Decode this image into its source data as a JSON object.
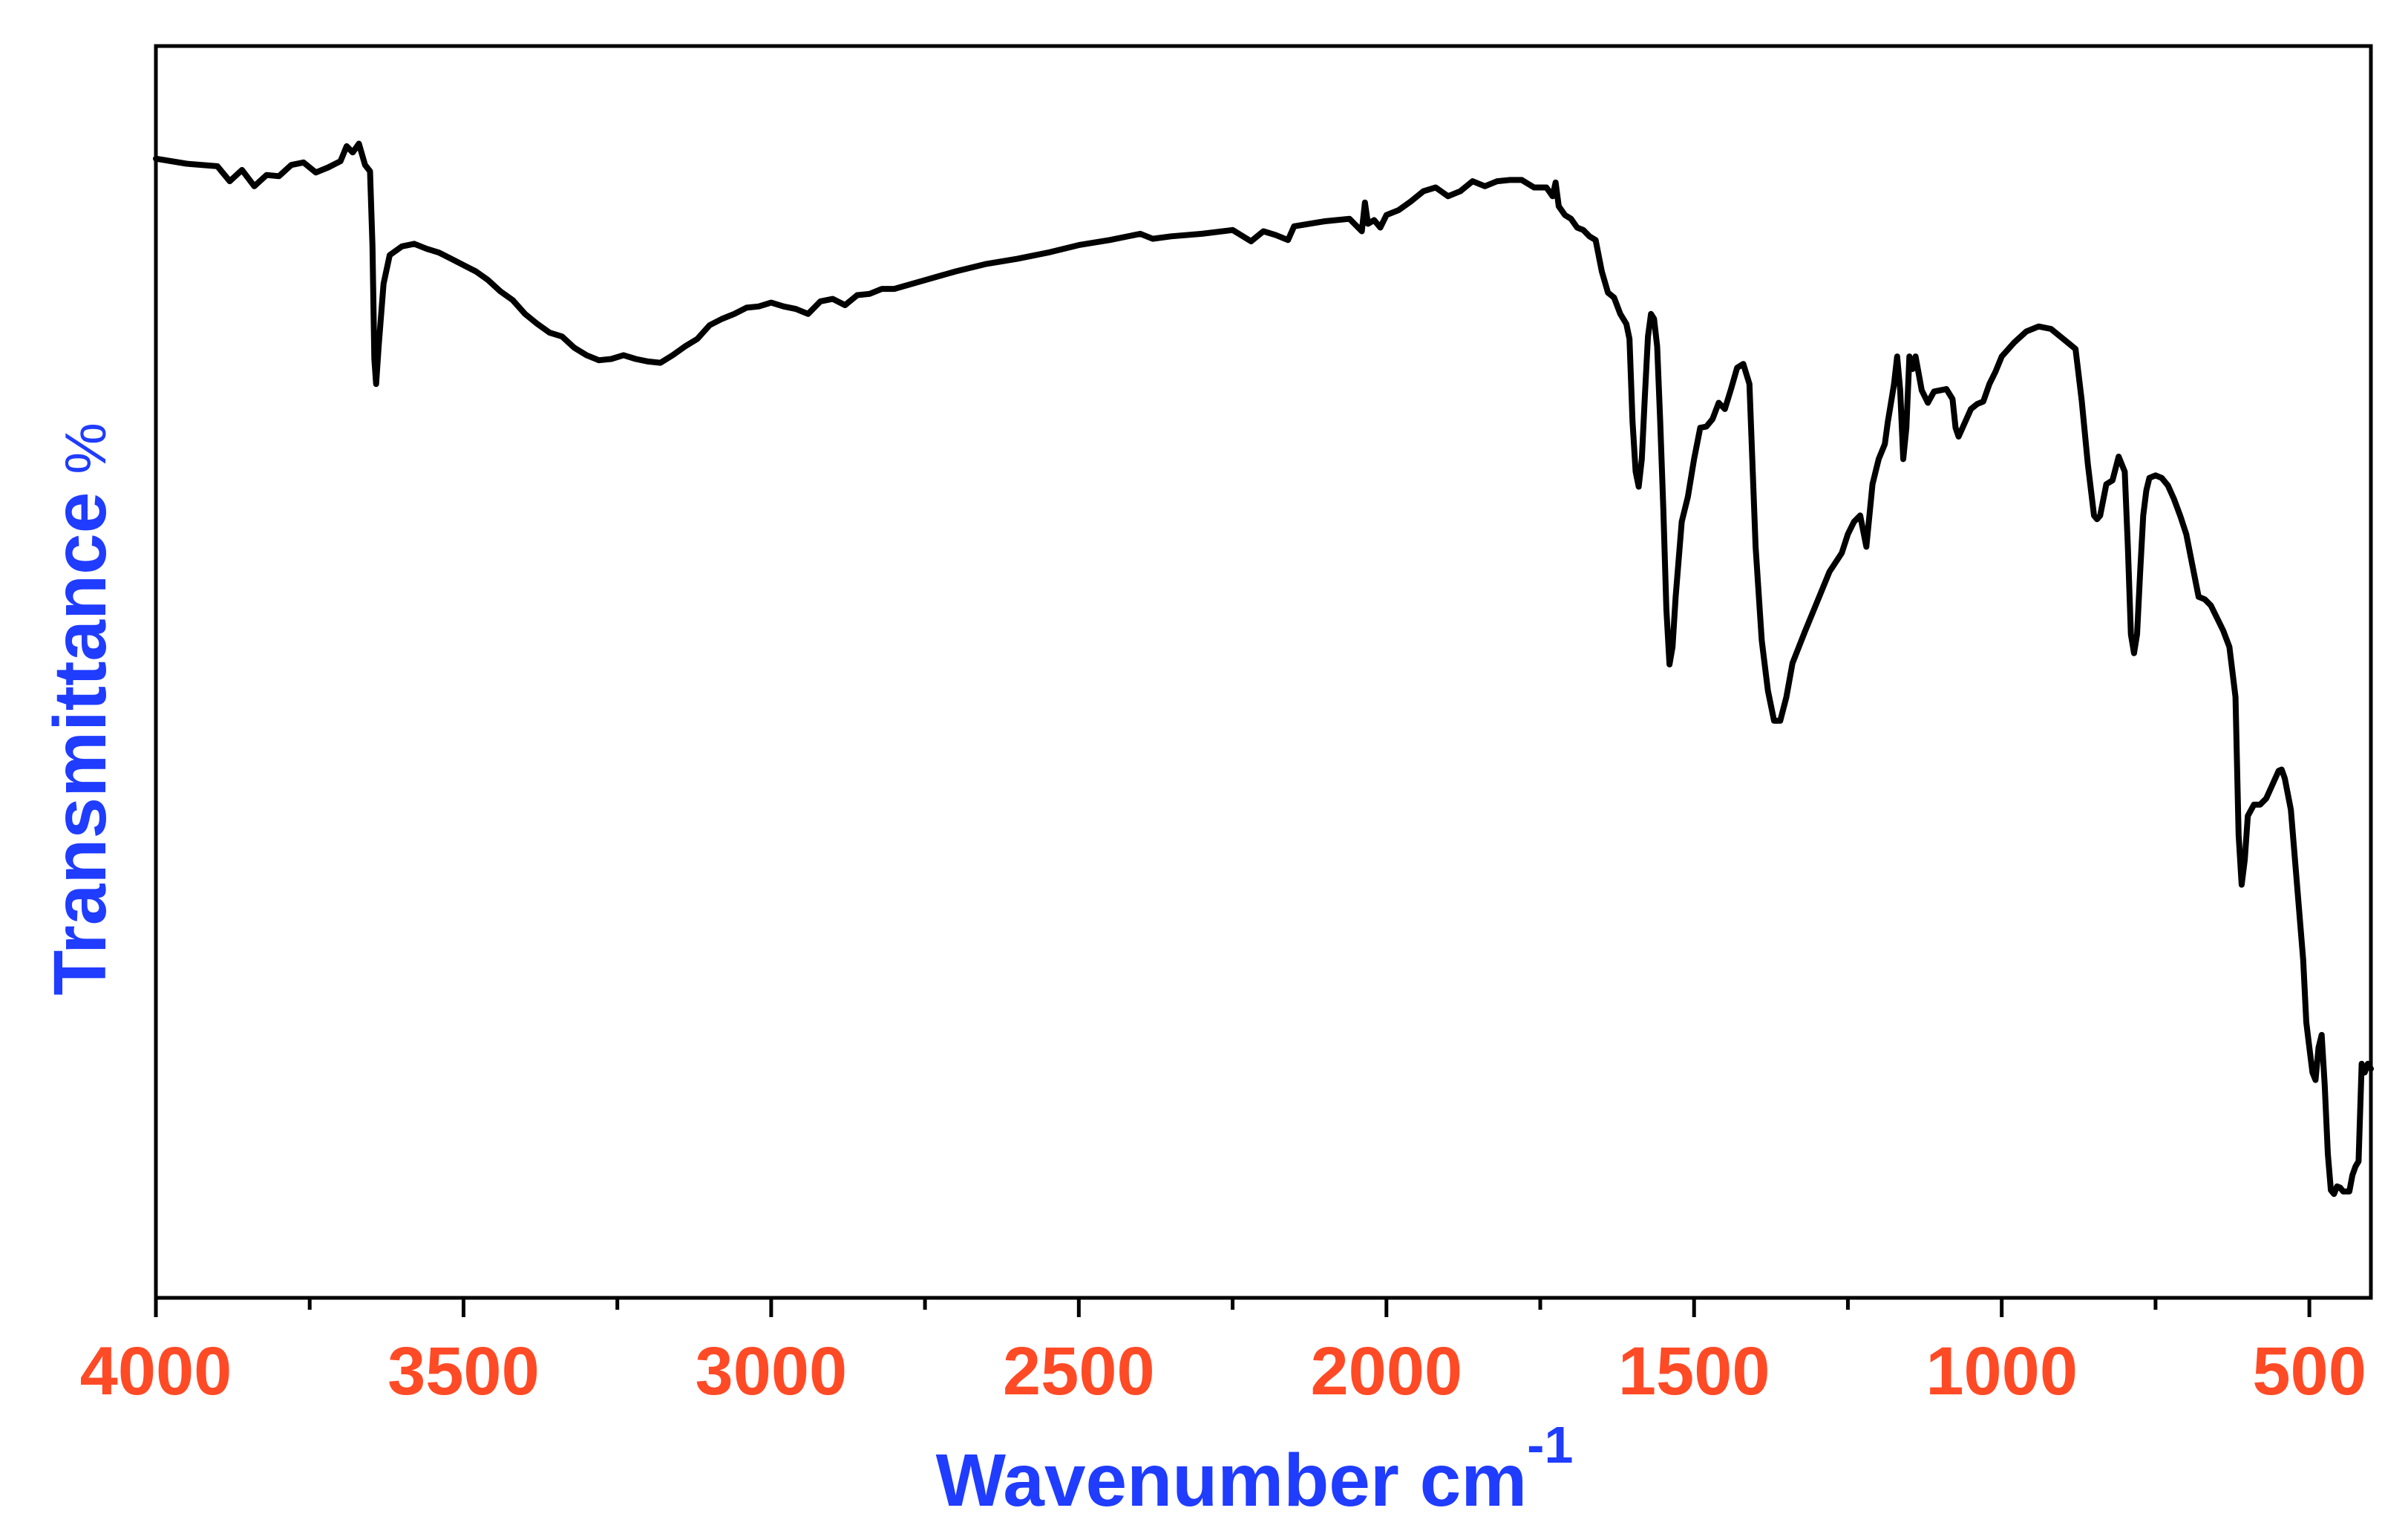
{
  "colors": {
    "line": "#000000",
    "axis": "#000000",
    "tick_label": "#ff4a26",
    "axis_title": "#1f3cff"
  },
  "chart_data": {
    "type": "line",
    "xlabel": "Wavenumber cm",
    "xlabel_superscript": "-1",
    "ylabel": "Transmittance",
    "ylabel_unit": "%",
    "xlim": [
      4000,
      400
    ],
    "ylim": [
      0,
      100
    ],
    "x_ticks": [
      4000,
      3500,
      3000,
      2500,
      2000,
      1500,
      1000,
      500
    ],
    "x_tick_labels": [
      "4000",
      "3500",
      "3000",
      "2500",
      "2000",
      "1500",
      "1000",
      "500"
    ],
    "y_tick_labels_visible": false,
    "grid": false,
    "legend": "none",
    "series": [
      {
        "x": [
          4000,
          3950,
          3900,
          3880,
          3860,
          3840,
          3820,
          3800,
          3780,
          3760,
          3740,
          3720,
          3700,
          3690,
          3680,
          3670,
          3660,
          3652,
          3648,
          3645,
          3642,
          3638,
          3630,
          3620,
          3600,
          3580,
          3560,
          3540,
          3520,
          3500,
          3480,
          3460,
          3440,
          3420,
          3400,
          3380,
          3360,
          3340,
          3320,
          3300,
          3280,
          3260,
          3240,
          3220,
          3200,
          3180,
          3160,
          3140,
          3120,
          3100,
          3080,
          3060,
          3040,
          3020,
          3000,
          2980,
          2960,
          2940,
          2920,
          2900,
          2880,
          2860,
          2840,
          2820,
          2800,
          2750,
          2700,
          2650,
          2600,
          2550,
          2500,
          2450,
          2400,
          2380,
          2350,
          2300,
          2250,
          2220,
          2200,
          2180,
          2160,
          2150,
          2100,
          2060,
          2040,
          2035,
          2030,
          2020,
          2010,
          2000,
          1980,
          1960,
          1940,
          1920,
          1900,
          1880,
          1860,
          1840,
          1820,
          1800,
          1780,
          1760,
          1740,
          1730,
          1725,
          1720,
          1710,
          1700,
          1690,
          1680,
          1670,
          1660,
          1650,
          1640,
          1630,
          1620,
          1610,
          1605,
          1600,
          1595,
          1590,
          1585,
          1580,
          1575,
          1570,
          1565,
          1560,
          1555,
          1550,
          1545,
          1540,
          1535,
          1530,
          1520,
          1510,
          1500,
          1490,
          1480,
          1470,
          1460,
          1450,
          1440,
          1430,
          1420,
          1410,
          1400,
          1390,
          1380,
          1370,
          1360,
          1350,
          1340,
          1320,
          1300,
          1280,
          1260,
          1250,
          1240,
          1230,
          1220,
          1210,
          1200,
          1190,
          1185,
          1180,
          1175,
          1170,
          1165,
          1160,
          1155,
          1150,
          1145,
          1140,
          1130,
          1120,
          1110,
          1100,
          1090,
          1080,
          1075,
          1070,
          1060,
          1050,
          1040,
          1030,
          1020,
          1010,
          1000,
          980,
          960,
          940,
          920,
          900,
          880,
          870,
          860,
          850,
          845,
          840,
          830,
          820,
          810,
          800,
          795,
          790,
          785,
          780,
          775,
          770,
          765,
          760,
          750,
          740,
          730,
          720,
          710,
          700,
          690,
          680,
          670,
          660,
          650,
          640,
          630,
          625,
          620,
          615,
          610,
          605,
          600,
          590,
          580,
          570,
          560,
          550,
          545,
          540,
          530,
          520,
          510,
          505,
          500,
          495,
          490,
          485,
          480,
          475,
          470,
          465,
          460,
          455,
          450,
          445,
          440,
          435,
          430,
          425,
          420,
          415,
          410,
          405,
          400
        ],
        "y": [
          91.0,
          90.6,
          90.4,
          89.2,
          90.1,
          88.8,
          89.7,
          89.6,
          90.5,
          90.7,
          89.9,
          90.3,
          90.8,
          92.0,
          91.5,
          92.2,
          90.5,
          90.0,
          84.0,
          75.0,
          73.0,
          76.0,
          81.0,
          83.3,
          84.0,
          84.2,
          83.8,
          83.5,
          83.0,
          82.5,
          82.0,
          81.3,
          80.4,
          79.7,
          78.6,
          77.8,
          77.1,
          76.8,
          75.9,
          75.3,
          74.9,
          75.0,
          75.3,
          75.0,
          74.8,
          74.7,
          75.3,
          76.0,
          76.6,
          77.7,
          78.2,
          78.6,
          79.1,
          79.2,
          79.5,
          79.2,
          79.0,
          78.6,
          79.6,
          79.8,
          79.3,
          80.1,
          80.2,
          80.6,
          80.6,
          81.3,
          82.0,
          82.6,
          83.0,
          83.5,
          84.1,
          84.5,
          85.0,
          84.6,
          84.8,
          85.0,
          85.3,
          84.4,
          85.2,
          84.9,
          84.5,
          85.6,
          86.0,
          86.2,
          85.2,
          87.5,
          85.8,
          86.1,
          85.5,
          86.5,
          86.9,
          87.6,
          88.4,
          88.7,
          88.0,
          88.4,
          89.2,
          88.8,
          89.2,
          89.3,
          89.3,
          88.7,
          88.7,
          88.0,
          89.1,
          87.2,
          86.5,
          86.2,
          85.5,
          85.3,
          84.8,
          84.5,
          82.0,
          80.3,
          79.9,
          78.6,
          77.8,
          76.6,
          70.0,
          66.0,
          64.8,
          67.0,
          72.0,
          76.8,
          78.6,
          78.2,
          76.0,
          70.0,
          63.0,
          55.0,
          50.6,
          52.0,
          56.0,
          62.0,
          64.0,
          67.0,
          69.5,
          69.6,
          70.2,
          71.5,
          71.0,
          72.6,
          74.3,
          74.6,
          73.0,
          60.0,
          52.5,
          48.5,
          46.1,
          46.1,
          48.0,
          50.7,
          53.2,
          55.6,
          58.0,
          59.5,
          61.0,
          62.0,
          62.5,
          60.0,
          65.0,
          67.0,
          68.2,
          70.0,
          71.5,
          73.0,
          75.2,
          72.5,
          67.0,
          69.5,
          75.2,
          74.2,
          75.2,
          72.5,
          71.5,
          72.4,
          72.5,
          72.6,
          71.8,
          69.5,
          68.8,
          69.9,
          71.0,
          71.4,
          71.6,
          73.0,
          74.0,
          75.2,
          76.3,
          77.2,
          77.6,
          77.4,
          76.6,
          75.8,
          71.7,
          66.6,
          62.5,
          62.2,
          62.5,
          65.0,
          65.3,
          67.2,
          66.0,
          60.0,
          53.0,
          51.5,
          53.0,
          58.0,
          62.5,
          64.5,
          65.5,
          65.7,
          65.5,
          64.9,
          63.8,
          62.5,
          61.0,
          58.5,
          56.0,
          55.8,
          55.3,
          54.3,
          53.3,
          52.0,
          50.0,
          48.0,
          37.0,
          33.0,
          35.0,
          38.5,
          39.4,
          39.4,
          39.9,
          41.0,
          42.1,
          42.2,
          41.5,
          39.0,
          33.0,
          27.0,
          22.0,
          20.0,
          18.0,
          17.4,
          20.0,
          21.0,
          17.0,
          11.5,
          8.6,
          8.3,
          8.9,
          8.8,
          8.5,
          8.5,
          8.5,
          9.8,
          10.5,
          10.9,
          18.7,
          18.0,
          18.7,
          18.3
        ]
      }
    ]
  }
}
